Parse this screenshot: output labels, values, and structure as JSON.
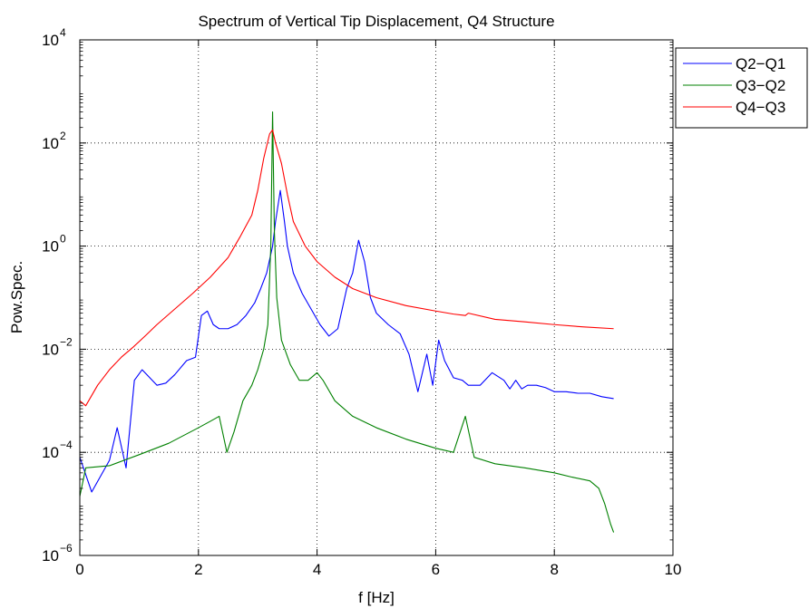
{
  "chart_data": {
    "type": "line",
    "title": "Spectrum of Vertical Tip Displacement, Q4 Structure",
    "xlabel": "f [Hz]",
    "ylabel": "Pow.Spec.",
    "xlim": [
      0,
      10
    ],
    "ylim": [
      1e-06,
      10000
    ],
    "yscale": "log",
    "grid": true,
    "legend_position": "outside-top-right",
    "xticks": [
      "0",
      "2",
      "4",
      "6",
      "8",
      "10"
    ],
    "ytick_exponents": [
      "4",
      "2",
      "0",
      "-2",
      "-4",
      "-6"
    ],
    "ytick_base": "10",
    "series": [
      {
        "name": "Q2−Q1",
        "color": "#0000ff",
        "x": [
          0,
          0.2,
          0.5,
          0.63,
          0.78,
          0.92,
          1.05,
          1.3,
          1.45,
          1.6,
          1.8,
          1.95,
          2.05,
          2.15,
          2.25,
          2.35,
          2.5,
          2.65,
          2.8,
          2.95,
          3.05,
          3.15,
          3.25,
          3.3,
          3.38,
          3.45,
          3.5,
          3.6,
          3.75,
          3.9,
          4.05,
          4.2,
          4.35,
          4.5,
          4.6,
          4.7,
          4.8,
          4.9,
          5.0,
          5.2,
          5.4,
          5.55,
          5.7,
          5.85,
          5.95,
          6.05,
          6.15,
          6.3,
          6.45,
          6.55,
          6.75,
          6.95,
          7.15,
          7.25,
          7.35,
          7.45,
          7.55,
          7.7,
          7.85,
          8.0,
          8.2,
          8.4,
          8.6,
          8.8,
          9.0
        ],
        "y": [
          8e-05,
          1.7e-05,
          7e-05,
          0.0003,
          5e-05,
          0.0025,
          0.004,
          0.002,
          0.0022,
          0.0032,
          0.006,
          0.007,
          0.045,
          0.055,
          0.03,
          0.025,
          0.025,
          0.03,
          0.045,
          0.08,
          0.15,
          0.3,
          1.0,
          3.0,
          12.0,
          3.0,
          1.0,
          0.3,
          0.12,
          0.06,
          0.03,
          0.018,
          0.025,
          0.15,
          0.3,
          1.3,
          0.5,
          0.1,
          0.05,
          0.03,
          0.02,
          0.008,
          0.0015,
          0.008,
          0.002,
          0.015,
          0.006,
          0.0028,
          0.0025,
          0.002,
          0.002,
          0.0035,
          0.0025,
          0.0017,
          0.0025,
          0.0017,
          0.002,
          0.002,
          0.0018,
          0.0015,
          0.0015,
          0.0014,
          0.0014,
          0.0012,
          0.0011
        ]
      },
      {
        "name": "Q3−Q2",
        "color": "#008000",
        "x": [
          0,
          0.1,
          0.5,
          1.0,
          1.5,
          2.0,
          2.2,
          2.35,
          2.48,
          2.6,
          2.75,
          2.9,
          3.0,
          3.1,
          3.17,
          3.22,
          3.25,
          3.28,
          3.32,
          3.4,
          3.55,
          3.7,
          3.85,
          4.0,
          4.1,
          4.3,
          4.6,
          5.0,
          5.5,
          6.0,
          6.3,
          6.5,
          6.65,
          7.0,
          7.5,
          8.0,
          8.3,
          8.6,
          8.75,
          8.85,
          8.95,
          9.0
        ],
        "y": [
          1.4e-05,
          5e-05,
          5.5e-05,
          9e-05,
          0.00015,
          0.0003,
          0.0004,
          0.0005,
          0.0001,
          0.00025,
          0.001,
          0.002,
          0.004,
          0.01,
          0.03,
          1.0,
          400.0,
          2.0,
          0.1,
          0.015,
          0.005,
          0.0025,
          0.0025,
          0.0035,
          0.0025,
          0.001,
          0.0005,
          0.0003,
          0.00018,
          0.00012,
          0.0001,
          0.0005,
          8e-05,
          6e-05,
          5e-05,
          4e-05,
          3.3e-05,
          2.8e-05,
          2e-05,
          1e-05,
          4e-06,
          2.8e-06
        ]
      },
      {
        "name": "Q4−Q3",
        "color": "#ff0000",
        "x": [
          0,
          0.1,
          0.3,
          0.5,
          0.7,
          0.9,
          1.1,
          1.3,
          1.6,
          1.9,
          2.2,
          2.5,
          2.7,
          2.9,
          3.0,
          3.1,
          3.2,
          3.25,
          3.3,
          3.4,
          3.5,
          3.6,
          3.8,
          4.0,
          4.3,
          4.6,
          5.0,
          5.5,
          6.0,
          6.3,
          6.5,
          6.55,
          7.0,
          7.5,
          8.0,
          8.5,
          9.0
        ],
        "y": [
          0.001,
          0.0008,
          0.002,
          0.004,
          0.007,
          0.011,
          0.018,
          0.03,
          0.06,
          0.12,
          0.25,
          0.6,
          1.5,
          4.0,
          12.0,
          50.0,
          150.0,
          180.0,
          100.0,
          40.0,
          10.0,
          3.0,
          1.0,
          0.5,
          0.25,
          0.15,
          0.1,
          0.07,
          0.055,
          0.048,
          0.045,
          0.05,
          0.038,
          0.034,
          0.03,
          0.027,
          0.025
        ]
      }
    ]
  }
}
